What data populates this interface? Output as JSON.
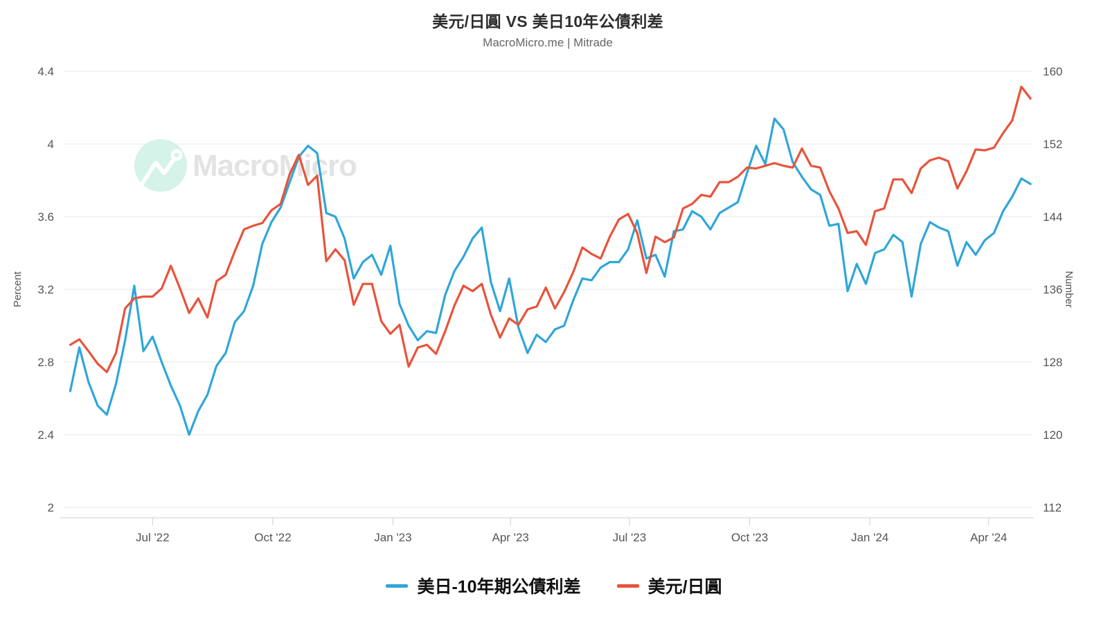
{
  "header": {
    "title": "美元/日圓 VS 美日10年公債利差",
    "subtitle": "MacroMicro.me | Mitrade"
  },
  "watermark": {
    "text": "MacroMicro",
    "circle_color": "#d5f3e8",
    "text_color": "#e3e3e3"
  },
  "colors": {
    "spread_blue": "#2fa6d9",
    "usdjpy_red": "#e8533b",
    "gridline": "#e7e7e7",
    "axis_line": "#cfcfcf",
    "tick_text": "#555555"
  },
  "legend": {
    "items": [
      {
        "label": "美日-10年期公債利差",
        "color": "#2fa6d9"
      },
      {
        "label": "美元/日圓",
        "color": "#e8533b"
      }
    ]
  },
  "chart_data": {
    "type": "line",
    "title": "美元/日圓 VS 美日10年公債利差",
    "subtitle": "MacroMicro.me | Mitrade",
    "grid": "horizontal-only",
    "legend_position": "bottom",
    "x_axis": {
      "range": [
        "2022-04-24",
        "2024-05-04"
      ],
      "ticks": [
        {
          "date": "2022-07-01",
          "label": "Jul '22"
        },
        {
          "date": "2022-10-01",
          "label": "Oct '22"
        },
        {
          "date": "2023-01-01",
          "label": "Jan '23"
        },
        {
          "date": "2023-04-01",
          "label": "Apr '23"
        },
        {
          "date": "2023-07-01",
          "label": "Jul '23"
        },
        {
          "date": "2023-10-01",
          "label": "Oct '23"
        },
        {
          "date": "2024-01-01",
          "label": "Jan '24"
        },
        {
          "date": "2024-04-01",
          "label": "Apr '24"
        }
      ]
    },
    "left_axis": {
      "label": "Percent",
      "range": [
        2,
        4.4
      ],
      "ticks": [
        {
          "value": 4.4,
          "label": "4.4"
        },
        {
          "value": 4,
          "label": "4"
        },
        {
          "value": 3.6,
          "label": "3.6"
        },
        {
          "value": 3.2,
          "label": "3.2"
        },
        {
          "value": 2.8,
          "label": "2.8"
        },
        {
          "value": 2.4,
          "label": "2.4"
        },
        {
          "value": 2,
          "label": "2"
        }
      ]
    },
    "right_axis": {
      "label": "Number",
      "range": [
        112,
        160
      ],
      "ticks": [
        {
          "value": 160,
          "label": "160"
        },
        {
          "value": 152,
          "label": "152"
        },
        {
          "value": 144,
          "label": "144"
        },
        {
          "value": 136,
          "label": "136"
        },
        {
          "value": 128,
          "label": "128"
        },
        {
          "value": 120,
          "label": "120"
        },
        {
          "value": 112,
          "label": "112"
        }
      ]
    },
    "series": [
      {
        "name": "美日-10年期公債利差",
        "axis": "left",
        "unit": "%",
        "color": "#2fa6d9",
        "points": [
          [
            "2022-04-29",
            2.64
          ],
          [
            "2022-05-06",
            2.88
          ],
          [
            "2022-05-13",
            2.69
          ],
          [
            "2022-05-20",
            2.56
          ],
          [
            "2022-05-27",
            2.51
          ],
          [
            "2022-06-03",
            2.68
          ],
          [
            "2022-06-10",
            2.92
          ],
          [
            "2022-06-17",
            3.22
          ],
          [
            "2022-06-24",
            2.86
          ],
          [
            "2022-07-01",
            2.94
          ],
          [
            "2022-07-08",
            2.8
          ],
          [
            "2022-07-15",
            2.67
          ],
          [
            "2022-07-22",
            2.56
          ],
          [
            "2022-07-29",
            2.4
          ],
          [
            "2022-08-05",
            2.53
          ],
          [
            "2022-08-12",
            2.62
          ],
          [
            "2022-08-19",
            2.78
          ],
          [
            "2022-08-26",
            2.85
          ],
          [
            "2022-09-02",
            3.02
          ],
          [
            "2022-09-09",
            3.08
          ],
          [
            "2022-09-16",
            3.22
          ],
          [
            "2022-09-23",
            3.45
          ],
          [
            "2022-09-30",
            3.57
          ],
          [
            "2022-10-07",
            3.65
          ],
          [
            "2022-10-14",
            3.79
          ],
          [
            "2022-10-21",
            3.93
          ],
          [
            "2022-10-28",
            3.99
          ],
          [
            "2022-11-04",
            3.95
          ],
          [
            "2022-11-11",
            3.62
          ],
          [
            "2022-11-18",
            3.6
          ],
          [
            "2022-11-25",
            3.48
          ],
          [
            "2022-12-02",
            3.26
          ],
          [
            "2022-12-09",
            3.35
          ],
          [
            "2022-12-16",
            3.39
          ],
          [
            "2022-12-23",
            3.28
          ],
          [
            "2022-12-30",
            3.44
          ],
          [
            "2023-01-06",
            3.12
          ],
          [
            "2023-01-13",
            3.0
          ],
          [
            "2023-01-20",
            2.92
          ],
          [
            "2023-01-27",
            2.97
          ],
          [
            "2023-02-03",
            2.96
          ],
          [
            "2023-02-10",
            3.17
          ],
          [
            "2023-02-17",
            3.3
          ],
          [
            "2023-02-24",
            3.38
          ],
          [
            "2023-03-03",
            3.48
          ],
          [
            "2023-03-10",
            3.54
          ],
          [
            "2023-03-17",
            3.24
          ],
          [
            "2023-03-24",
            3.08
          ],
          [
            "2023-03-31",
            3.26
          ],
          [
            "2023-04-07",
            2.99
          ],
          [
            "2023-04-14",
            2.85
          ],
          [
            "2023-04-21",
            2.95
          ],
          [
            "2023-04-28",
            2.91
          ],
          [
            "2023-05-05",
            2.98
          ],
          [
            "2023-05-12",
            3.0
          ],
          [
            "2023-05-19",
            3.14
          ],
          [
            "2023-05-26",
            3.26
          ],
          [
            "2023-06-02",
            3.25
          ],
          [
            "2023-06-09",
            3.32
          ],
          [
            "2023-06-16",
            3.35
          ],
          [
            "2023-06-23",
            3.35
          ],
          [
            "2023-06-30",
            3.42
          ],
          [
            "2023-07-07",
            3.58
          ],
          [
            "2023-07-14",
            3.37
          ],
          [
            "2023-07-21",
            3.39
          ],
          [
            "2023-07-28",
            3.27
          ],
          [
            "2023-08-04",
            3.52
          ],
          [
            "2023-08-11",
            3.53
          ],
          [
            "2023-08-18",
            3.63
          ],
          [
            "2023-08-25",
            3.6
          ],
          [
            "2023-09-01",
            3.53
          ],
          [
            "2023-09-08",
            3.62
          ],
          [
            "2023-09-15",
            3.65
          ],
          [
            "2023-09-22",
            3.68
          ],
          [
            "2023-09-29",
            3.84
          ],
          [
            "2023-10-06",
            3.99
          ],
          [
            "2023-10-13",
            3.89
          ],
          [
            "2023-10-20",
            4.14
          ],
          [
            "2023-10-27",
            4.08
          ],
          [
            "2023-11-03",
            3.9
          ],
          [
            "2023-11-10",
            3.82
          ],
          [
            "2023-11-17",
            3.75
          ],
          [
            "2023-11-24",
            3.72
          ],
          [
            "2023-12-01",
            3.55
          ],
          [
            "2023-12-08",
            3.56
          ],
          [
            "2023-12-15",
            3.19
          ],
          [
            "2023-12-22",
            3.34
          ],
          [
            "2023-12-29",
            3.23
          ],
          [
            "2024-01-05",
            3.4
          ],
          [
            "2024-01-12",
            3.42
          ],
          [
            "2024-01-19",
            3.5
          ],
          [
            "2024-01-26",
            3.46
          ],
          [
            "2024-02-02",
            3.16
          ],
          [
            "2024-02-09",
            3.45
          ],
          [
            "2024-02-16",
            3.57
          ],
          [
            "2024-02-23",
            3.54
          ],
          [
            "2024-03-01",
            3.52
          ],
          [
            "2024-03-08",
            3.33
          ],
          [
            "2024-03-15",
            3.46
          ],
          [
            "2024-03-22",
            3.39
          ],
          [
            "2024-03-29",
            3.47
          ],
          [
            "2024-04-05",
            3.51
          ],
          [
            "2024-04-12",
            3.63
          ],
          [
            "2024-04-19",
            3.71
          ],
          [
            "2024-04-26",
            3.81
          ],
          [
            "2024-05-03",
            3.78
          ]
        ]
      },
      {
        "name": "美元/日圓",
        "axis": "right",
        "unit": "",
        "color": "#e8533b",
        "points": [
          [
            "2022-04-29",
            129.9
          ],
          [
            "2022-05-06",
            130.5
          ],
          [
            "2022-05-13",
            129.2
          ],
          [
            "2022-05-20",
            127.8
          ],
          [
            "2022-05-27",
            126.9
          ],
          [
            "2022-06-03",
            129.0
          ],
          [
            "2022-06-10",
            133.9
          ],
          [
            "2022-06-17",
            135.0
          ],
          [
            "2022-06-24",
            135.2
          ],
          [
            "2022-07-01",
            135.2
          ],
          [
            "2022-07-08",
            136.1
          ],
          [
            "2022-07-15",
            138.6
          ],
          [
            "2022-07-22",
            136.1
          ],
          [
            "2022-07-29",
            133.4
          ],
          [
            "2022-08-05",
            135.0
          ],
          [
            "2022-08-12",
            132.9
          ],
          [
            "2022-08-19",
            136.9
          ],
          [
            "2022-08-26",
            137.6
          ],
          [
            "2022-09-02",
            140.2
          ],
          [
            "2022-09-09",
            142.6
          ],
          [
            "2022-09-16",
            143.0
          ],
          [
            "2022-09-23",
            143.3
          ],
          [
            "2022-09-30",
            144.7
          ],
          [
            "2022-10-07",
            145.4
          ],
          [
            "2022-10-14",
            148.7
          ],
          [
            "2022-10-21",
            150.8
          ],
          [
            "2022-10-28",
            147.5
          ],
          [
            "2022-11-04",
            148.5
          ],
          [
            "2022-11-11",
            139.1
          ],
          [
            "2022-11-18",
            140.4
          ],
          [
            "2022-11-25",
            139.2
          ],
          [
            "2022-12-02",
            134.3
          ],
          [
            "2022-12-09",
            136.6
          ],
          [
            "2022-12-16",
            136.6
          ],
          [
            "2022-12-23",
            132.5
          ],
          [
            "2022-12-30",
            131.1
          ],
          [
            "2023-01-06",
            132.1
          ],
          [
            "2023-01-13",
            127.5
          ],
          [
            "2023-01-20",
            129.6
          ],
          [
            "2023-01-27",
            129.9
          ],
          [
            "2023-02-03",
            128.9
          ],
          [
            "2023-02-10",
            131.4
          ],
          [
            "2023-02-17",
            134.2
          ],
          [
            "2023-02-24",
            136.4
          ],
          [
            "2023-03-03",
            135.8
          ],
          [
            "2023-03-10",
            136.6
          ],
          [
            "2023-03-17",
            133.2
          ],
          [
            "2023-03-24",
            130.7
          ],
          [
            "2023-03-31",
            132.8
          ],
          [
            "2023-04-07",
            132.1
          ],
          [
            "2023-04-14",
            133.8
          ],
          [
            "2023-04-21",
            134.1
          ],
          [
            "2023-04-28",
            136.2
          ],
          [
            "2023-05-05",
            133.9
          ],
          [
            "2023-05-12",
            135.7
          ],
          [
            "2023-05-19",
            137.9
          ],
          [
            "2023-05-26",
            140.6
          ],
          [
            "2023-06-02",
            139.9
          ],
          [
            "2023-06-09",
            139.4
          ],
          [
            "2023-06-16",
            141.8
          ],
          [
            "2023-06-23",
            143.7
          ],
          [
            "2023-06-30",
            144.3
          ],
          [
            "2023-07-07",
            142.2
          ],
          [
            "2023-07-14",
            137.8
          ],
          [
            "2023-07-21",
            141.8
          ],
          [
            "2023-07-28",
            141.2
          ],
          [
            "2023-08-04",
            141.7
          ],
          [
            "2023-08-11",
            144.9
          ],
          [
            "2023-08-18",
            145.4
          ],
          [
            "2023-08-25",
            146.4
          ],
          [
            "2023-09-01",
            146.2
          ],
          [
            "2023-09-08",
            147.8
          ],
          [
            "2023-09-15",
            147.8
          ],
          [
            "2023-09-22",
            148.4
          ],
          [
            "2023-09-29",
            149.4
          ],
          [
            "2023-10-06",
            149.3
          ],
          [
            "2023-10-13",
            149.6
          ],
          [
            "2023-10-20",
            149.9
          ],
          [
            "2023-10-27",
            149.6
          ],
          [
            "2023-11-03",
            149.4
          ],
          [
            "2023-11-10",
            151.5
          ],
          [
            "2023-11-17",
            149.6
          ],
          [
            "2023-11-24",
            149.4
          ],
          [
            "2023-12-01",
            146.8
          ],
          [
            "2023-12-08",
            144.9
          ],
          [
            "2023-12-15",
            142.2
          ],
          [
            "2023-12-22",
            142.4
          ],
          [
            "2023-12-29",
            140.9
          ],
          [
            "2024-01-05",
            144.6
          ],
          [
            "2024-01-12",
            144.9
          ],
          [
            "2024-01-19",
            148.1
          ],
          [
            "2024-01-26",
            148.1
          ],
          [
            "2024-02-02",
            146.6
          ],
          [
            "2024-02-09",
            149.3
          ],
          [
            "2024-02-16",
            150.2
          ],
          [
            "2024-02-23",
            150.5
          ],
          [
            "2024-03-01",
            150.1
          ],
          [
            "2024-03-08",
            147.1
          ],
          [
            "2024-03-15",
            149.0
          ],
          [
            "2024-03-22",
            151.4
          ],
          [
            "2024-03-29",
            151.3
          ],
          [
            "2024-04-05",
            151.6
          ],
          [
            "2024-04-12",
            153.2
          ],
          [
            "2024-04-19",
            154.6
          ],
          [
            "2024-04-26",
            158.3
          ],
          [
            "2024-05-03",
            157.0
          ]
        ]
      }
    ]
  }
}
